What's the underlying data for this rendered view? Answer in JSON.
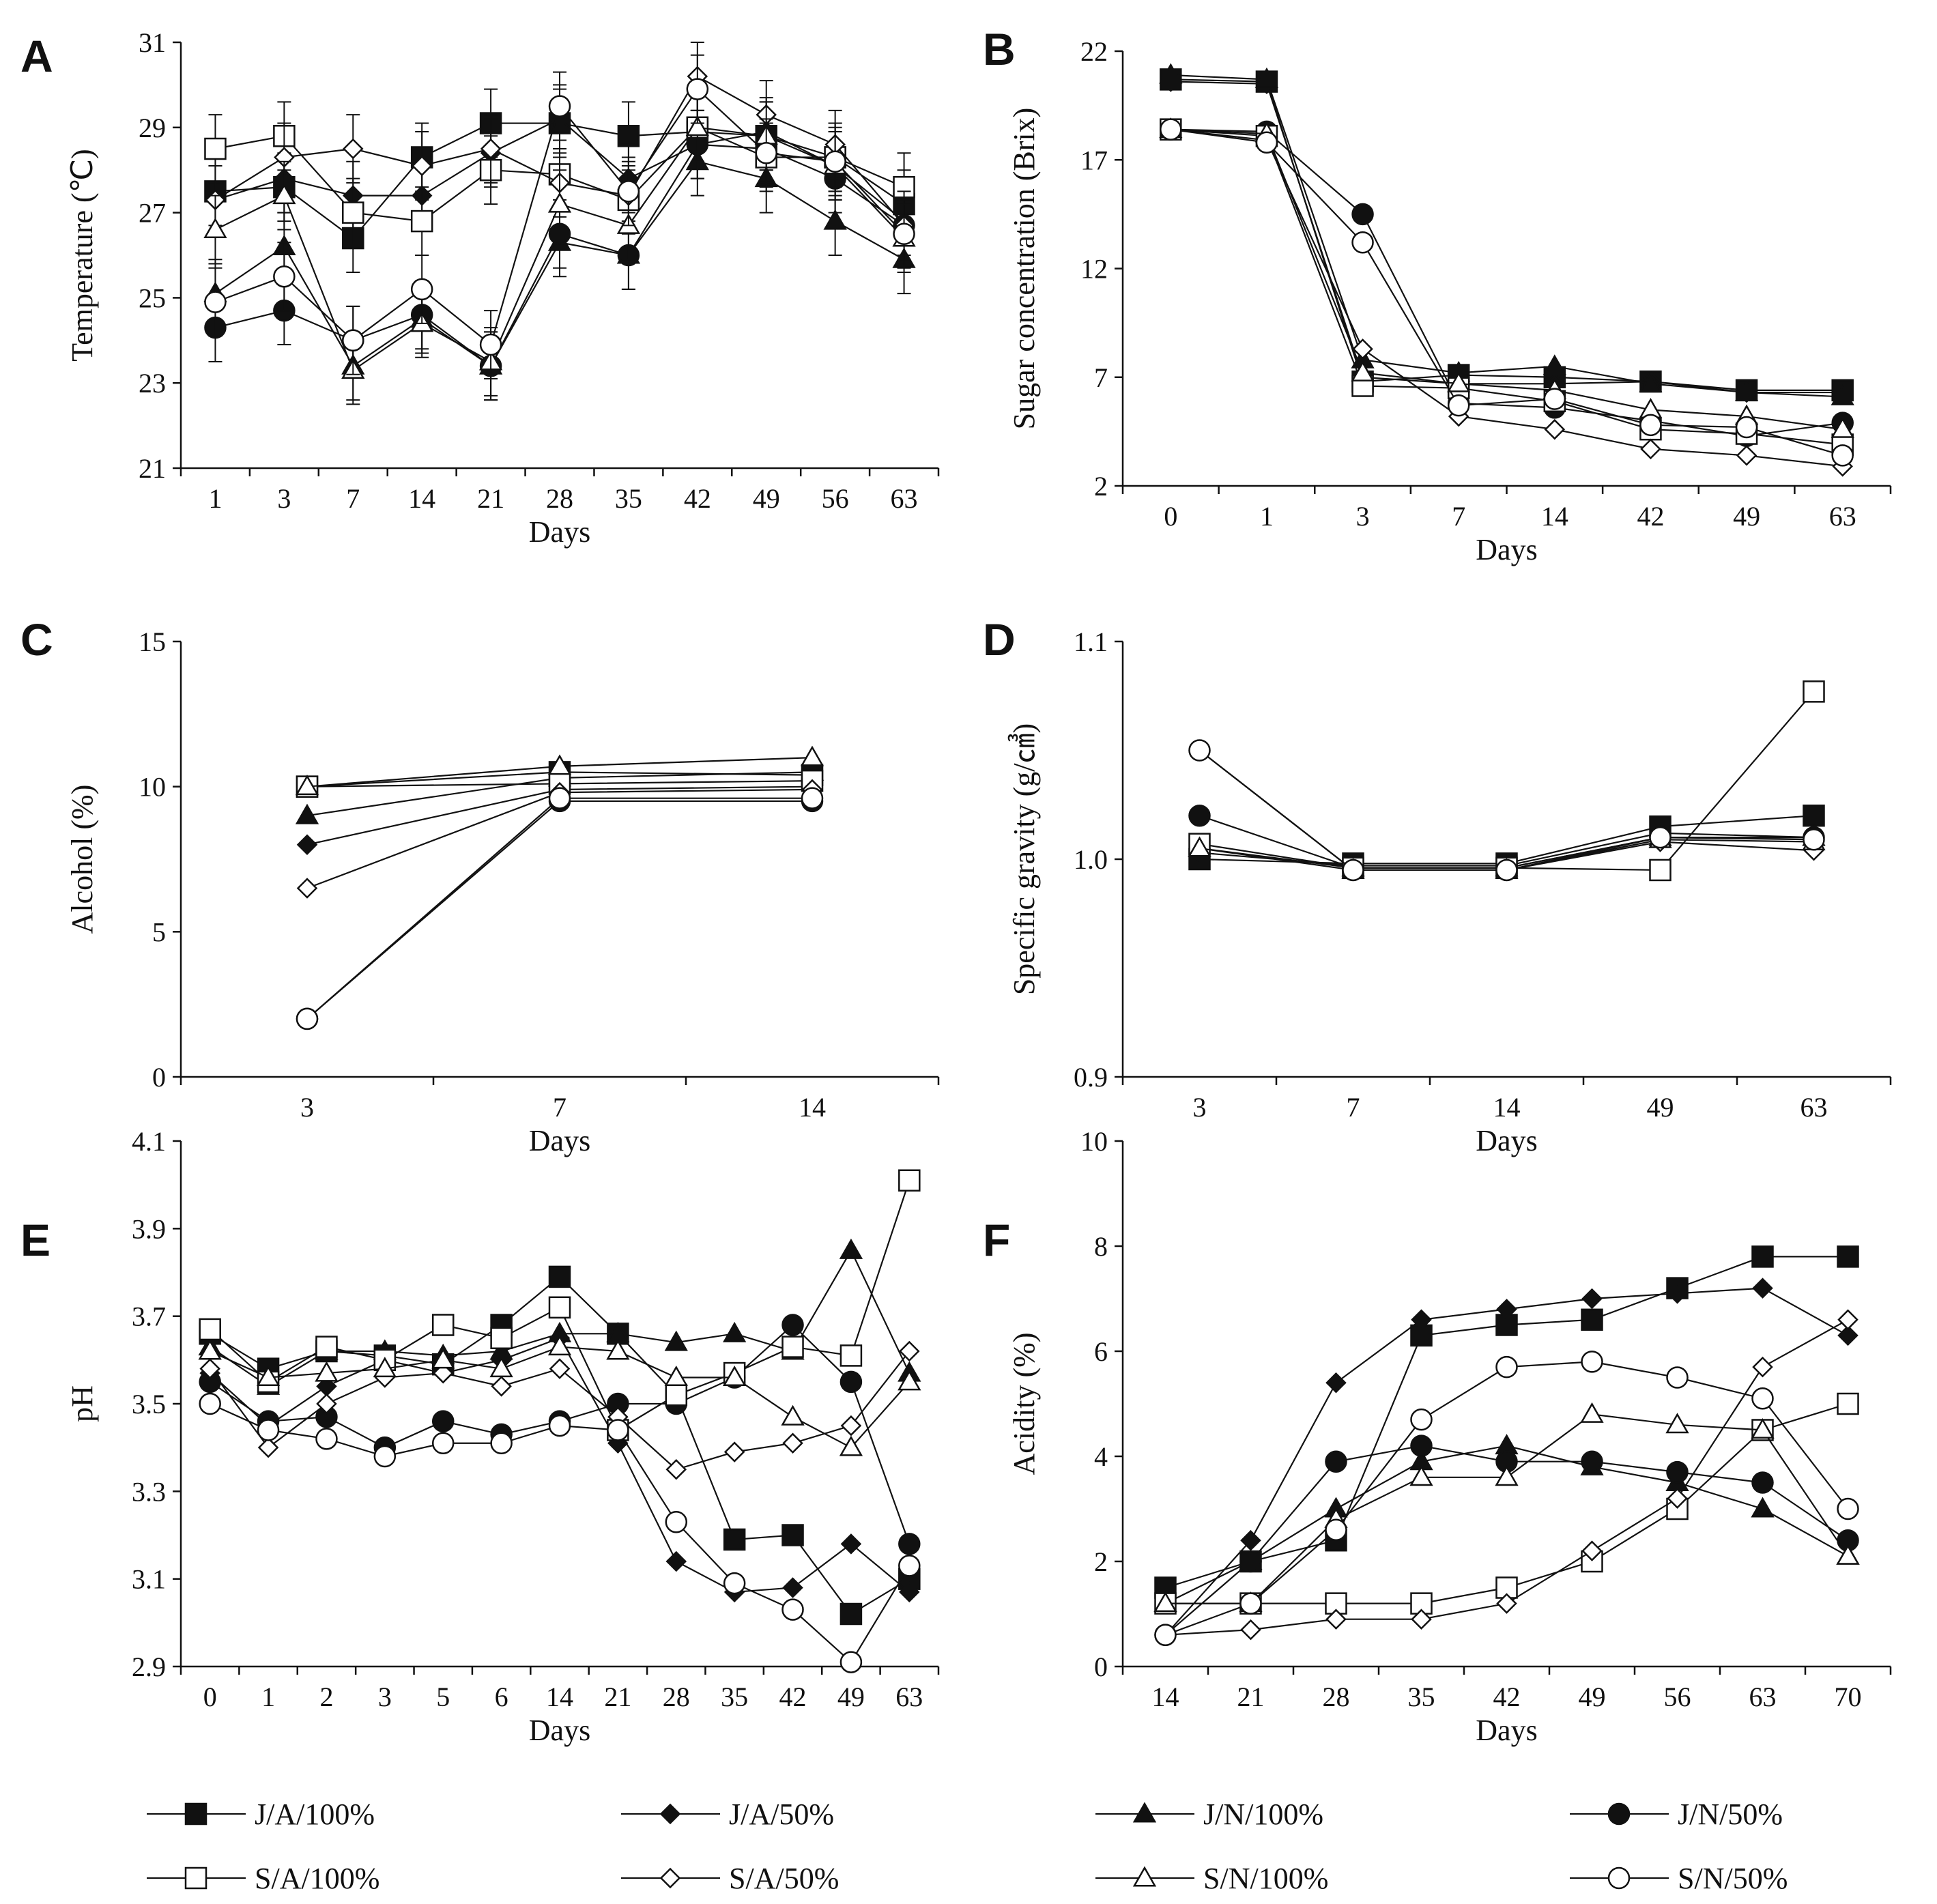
{
  "series": [
    {
      "name": "J/A/100%",
      "marker": "square",
      "fill": "filled"
    },
    {
      "name": "J/A/50%",
      "marker": "diamond",
      "fill": "filled"
    },
    {
      "name": "J/N/100%",
      "marker": "triangle",
      "fill": "filled"
    },
    {
      "name": "J/N/50%",
      "marker": "circle",
      "fill": "filled"
    },
    {
      "name": "S/A/100%",
      "marker": "square",
      "fill": "open"
    },
    {
      "name": "S/A/50%",
      "marker": "diamond",
      "fill": "open"
    },
    {
      "name": "S/N/100%",
      "marker": "triangle",
      "fill": "open"
    },
    {
      "name": "S/N/50%",
      "marker": "circle",
      "fill": "open"
    }
  ],
  "chart_data": [
    {
      "panel": "A",
      "type": "line",
      "xlabel": "Days",
      "ylabel": "Temperature (℃)",
      "categories": [
        "1",
        "3",
        "7",
        "14",
        "21",
        "28",
        "35",
        "42",
        "49",
        "56",
        "63"
      ],
      "ylim": [
        21,
        31
      ],
      "yticks": [
        21,
        23,
        25,
        27,
        29,
        31
      ],
      "ytick_labels": [
        "21",
        "23",
        "25",
        "27",
        "29",
        "31"
      ],
      "error_bars": true,
      "series": [
        {
          "name": "J/A/100%",
          "values": [
            27.5,
            27.6,
            26.4,
            28.3,
            29.1,
            29.1,
            28.8,
            28.9,
            28.8,
            28.3,
            27.2
          ]
        },
        {
          "name": "J/A/50%",
          "values": [
            27.3,
            27.8,
            27.4,
            27.4,
            28.4,
            29.2,
            27.8,
            28.6,
            28.9,
            28.1,
            26.8
          ]
        },
        {
          "name": "J/N/100%",
          "values": [
            25.1,
            26.2,
            23.4,
            24.5,
            23.4,
            26.3,
            26.0,
            28.2,
            27.8,
            26.8,
            25.9
          ]
        },
        {
          "name": "J/N/50%",
          "values": [
            24.3,
            24.7,
            24.0,
            24.6,
            23.4,
            26.5,
            26.0,
            28.6,
            28.5,
            27.8,
            26.7
          ]
        },
        {
          "name": "S/A/100%",
          "values": [
            28.5,
            28.8,
            27.0,
            26.8,
            28.0,
            27.9,
            27.3,
            29.0,
            28.3,
            28.3,
            27.6
          ]
        },
        {
          "name": "S/A/50%",
          "values": [
            27.3,
            28.3,
            28.5,
            28.1,
            28.5,
            27.7,
            27.4,
            30.2,
            29.3,
            28.6,
            26.7
          ]
        },
        {
          "name": "S/N/100%",
          "values": [
            26.6,
            27.4,
            23.3,
            24.4,
            23.5,
            27.2,
            26.7,
            29.0,
            28.8,
            28.1,
            26.4
          ]
        },
        {
          "name": "S/N/50%",
          "values": [
            24.9,
            25.5,
            24.0,
            25.2,
            23.9,
            29.5,
            27.5,
            29.9,
            28.4,
            28.2,
            26.5
          ]
        }
      ]
    },
    {
      "panel": "B",
      "type": "line",
      "xlabel": "Days",
      "ylabel": "Sugar concentration (Brix)",
      "categories": [
        "0",
        "1",
        "3",
        "7",
        "14",
        "42",
        "49",
        "63"
      ],
      "ylim": [
        2,
        22
      ],
      "yticks": [
        2,
        7,
        12,
        17,
        22
      ],
      "ytick_labels": [
        "2",
        "7",
        "12",
        "17",
        "22"
      ],
      "error_bars": false,
      "series": [
        {
          "name": "J/A/100%",
          "values": [
            20.7,
            20.6,
            6.8,
            7.1,
            7.0,
            6.8,
            6.4,
            6.4
          ]
        },
        {
          "name": "J/A/50%",
          "values": [
            20.6,
            20.5,
            7.0,
            6.7,
            6.7,
            6.8,
            6.3,
            6.3
          ]
        },
        {
          "name": "J/N/100%",
          "values": [
            20.9,
            20.7,
            7.8,
            7.2,
            7.5,
            6.7,
            6.3,
            6.1
          ]
        },
        {
          "name": "J/N/50%",
          "values": [
            18.4,
            18.3,
            14.5,
            5.8,
            5.6,
            5.0,
            4.3,
            4.9
          ]
        },
        {
          "name": "S/A/100%",
          "values": [
            18.4,
            18.1,
            6.6,
            6.5,
            5.9,
            4.6,
            4.4,
            3.9
          ]
        },
        {
          "name": "S/A/50%",
          "values": [
            18.4,
            17.9,
            8.3,
            5.2,
            4.6,
            3.7,
            3.4,
            2.9
          ]
        },
        {
          "name": "S/N/100%",
          "values": [
            18.4,
            18.2,
            7.2,
            6.7,
            6.4,
            5.5,
            5.2,
            4.6
          ]
        },
        {
          "name": "S/N/50%",
          "values": [
            18.4,
            17.8,
            13.2,
            5.7,
            6.0,
            4.8,
            4.7,
            3.4
          ]
        }
      ]
    },
    {
      "panel": "C",
      "type": "line",
      "xlabel": "Days",
      "ylabel": "Alcohol (%)",
      "categories": [
        "3",
        "7",
        "14"
      ],
      "ylim": [
        0,
        15
      ],
      "yticks": [
        0,
        5,
        10,
        15
      ],
      "ytick_labels": [
        "0",
        "5",
        "10",
        "15"
      ],
      "error_bars": false,
      "series": [
        {
          "name": "J/A/100%",
          "values": [
            10.0,
            10.5,
            10.4
          ]
        },
        {
          "name": "J/A/50%",
          "values": [
            8.0,
            9.9,
            10.0
          ]
        },
        {
          "name": "J/N/100%",
          "values": [
            9.0,
            10.3,
            10.5
          ]
        },
        {
          "name": "J/N/50%",
          "values": [
            2.0,
            9.5,
            9.5
          ]
        },
        {
          "name": "S/A/100%",
          "values": [
            10.0,
            10.1,
            10.2
          ]
        },
        {
          "name": "S/A/50%",
          "values": [
            6.5,
            9.8,
            9.9
          ]
        },
        {
          "name": "S/N/100%",
          "values": [
            10.0,
            10.7,
            11.0
          ]
        },
        {
          "name": "S/N/50%",
          "values": [
            2.0,
            9.6,
            9.6
          ]
        }
      ]
    },
    {
      "panel": "D",
      "type": "line",
      "xlabel": "Days",
      "ylabel": "Specific gravity (g/㎤)",
      "categories": [
        "3",
        "7",
        "14",
        "49",
        "63"
      ],
      "ylim": [
        0.9,
        1.1
      ],
      "yticks": [
        0.9,
        1.0,
        1.1
      ],
      "ytick_labels": [
        "0.9",
        "1.0",
        "1.1"
      ],
      "error_bars": false,
      "series": [
        {
          "name": "J/A/100%",
          "values": [
            1.0,
            0.998,
            0.998,
            1.015,
            1.02
          ]
        },
        {
          "name": "J/A/50%",
          "values": [
            1.003,
            0.997,
            0.997,
            1.012,
            1.01
          ]
        },
        {
          "name": "J/N/100%",
          "values": [
            1.005,
            0.996,
            0.996,
            1.01,
            1.01
          ]
        },
        {
          "name": "J/N/50%",
          "values": [
            1.02,
            0.996,
            0.996,
            1.01,
            1.01
          ]
        },
        {
          "name": "S/A/100%",
          "values": [
            1.007,
            0.996,
            0.996,
            0.995,
            1.077
          ]
        },
        {
          "name": "S/A/50%",
          "values": [
            1.05,
            0.995,
            0.995,
            1.008,
            1.004
          ]
        },
        {
          "name": "S/N/100%",
          "values": [
            1.005,
            0.995,
            0.995,
            1.009,
            1.008
          ]
        },
        {
          "name": "S/N/50%",
          "values": [
            1.05,
            0.995,
            0.995,
            1.01,
            1.009
          ]
        }
      ]
    },
    {
      "panel": "E",
      "type": "line",
      "xlabel": "Days",
      "ylabel": "pH",
      "categories": [
        "0",
        "1",
        "2",
        "3",
        "5",
        "6",
        "14",
        "21",
        "28",
        "35",
        "42",
        "49",
        "63"
      ],
      "ylim": [
        2.9,
        4.1
      ],
      "yticks": [
        2.9,
        3.1,
        3.3,
        3.5,
        3.7,
        3.9,
        4.1
      ],
      "ytick_labels": [
        "2.9",
        "3.1",
        "3.3",
        "3.5",
        "3.7",
        "3.9",
        "4.1"
      ],
      "error_bars": false,
      "series": [
        {
          "name": "J/A/100%",
          "values": [
            3.66,
            3.58,
            3.62,
            3.61,
            3.59,
            3.68,
            3.79,
            3.66,
            3.52,
            3.19,
            3.2,
            3.02,
            3.1
          ]
        },
        {
          "name": "J/A/50%",
          "values": [
            3.57,
            3.45,
            3.54,
            3.6,
            3.57,
            3.6,
            3.65,
            3.41,
            3.14,
            3.07,
            3.08,
            3.18,
            3.07
          ]
        },
        {
          "name": "J/N/100%",
          "values": [
            3.63,
            3.54,
            3.62,
            3.62,
            3.61,
            3.62,
            3.66,
            3.66,
            3.64,
            3.66,
            3.62,
            3.85,
            3.57
          ]
        },
        {
          "name": "J/N/50%",
          "values": [
            3.55,
            3.46,
            3.47,
            3.4,
            3.46,
            3.43,
            3.46,
            3.5,
            3.5,
            3.56,
            3.68,
            3.55,
            3.18
          ]
        },
        {
          "name": "S/A/100%",
          "values": [
            3.67,
            3.55,
            3.63,
            3.6,
            3.68,
            3.65,
            3.72,
            3.44,
            3.52,
            3.57,
            3.63,
            3.61,
            4.01
          ]
        },
        {
          "name": "S/A/50%",
          "values": [
            3.58,
            3.4,
            3.5,
            3.56,
            3.57,
            3.54,
            3.58,
            3.47,
            3.35,
            3.39,
            3.41,
            3.45,
            3.62
          ]
        },
        {
          "name": "S/N/100%",
          "values": [
            3.62,
            3.56,
            3.57,
            3.58,
            3.6,
            3.58,
            3.63,
            3.62,
            3.56,
            3.56,
            3.47,
            3.4,
            3.55
          ]
        },
        {
          "name": "S/N/50%",
          "values": [
            3.5,
            3.44,
            3.42,
            3.38,
            3.41,
            3.41,
            3.45,
            3.44,
            3.23,
            3.09,
            3.03,
            2.91,
            3.13
          ]
        }
      ]
    },
    {
      "panel": "F",
      "type": "line",
      "xlabel": "Days",
      "ylabel": "Acidity (%)",
      "categories": [
        "14",
        "21",
        "28",
        "35",
        "42",
        "49",
        "56",
        "63",
        "70"
      ],
      "ylim": [
        0,
        10
      ],
      "yticks": [
        0,
        2,
        4,
        6,
        8,
        10
      ],
      "ytick_labels": [
        "0",
        "2",
        "4",
        "6",
        "8",
        "10"
      ],
      "error_bars": false,
      "series": [
        {
          "name": "J/A/100%",
          "values": [
            1.5,
            2.0,
            2.4,
            6.3,
            6.5,
            6.6,
            7.2,
            7.8,
            7.8
          ]
        },
        {
          "name": "J/A/50%",
          "values": [
            0.6,
            2.4,
            5.4,
            6.6,
            6.8,
            7.0,
            7.1,
            7.2,
            6.3
          ]
        },
        {
          "name": "J/N/100%",
          "values": [
            1.2,
            2.0,
            3.0,
            3.9,
            4.2,
            3.8,
            3.5,
            3.0,
            2.1
          ]
        },
        {
          "name": "J/N/50%",
          "values": [
            0.6,
            2.0,
            3.9,
            4.2,
            3.9,
            3.9,
            3.7,
            3.5,
            2.4
          ]
        },
        {
          "name": "S/A/100%",
          "values": [
            1.2,
            1.2,
            1.2,
            1.2,
            1.5,
            2.0,
            3.0,
            4.5,
            5.0
          ]
        },
        {
          "name": "S/A/50%",
          "values": [
            0.6,
            0.7,
            0.9,
            0.9,
            1.2,
            2.2,
            3.2,
            5.7,
            6.6
          ]
        },
        {
          "name": "S/N/100%",
          "values": [
            1.2,
            1.2,
            2.8,
            3.6,
            3.6,
            4.8,
            4.6,
            4.5,
            2.1
          ]
        },
        {
          "name": "S/N/50%",
          "values": [
            0.6,
            1.2,
            2.6,
            4.7,
            5.7,
            5.8,
            5.5,
            5.1,
            3.0
          ]
        }
      ]
    }
  ]
}
